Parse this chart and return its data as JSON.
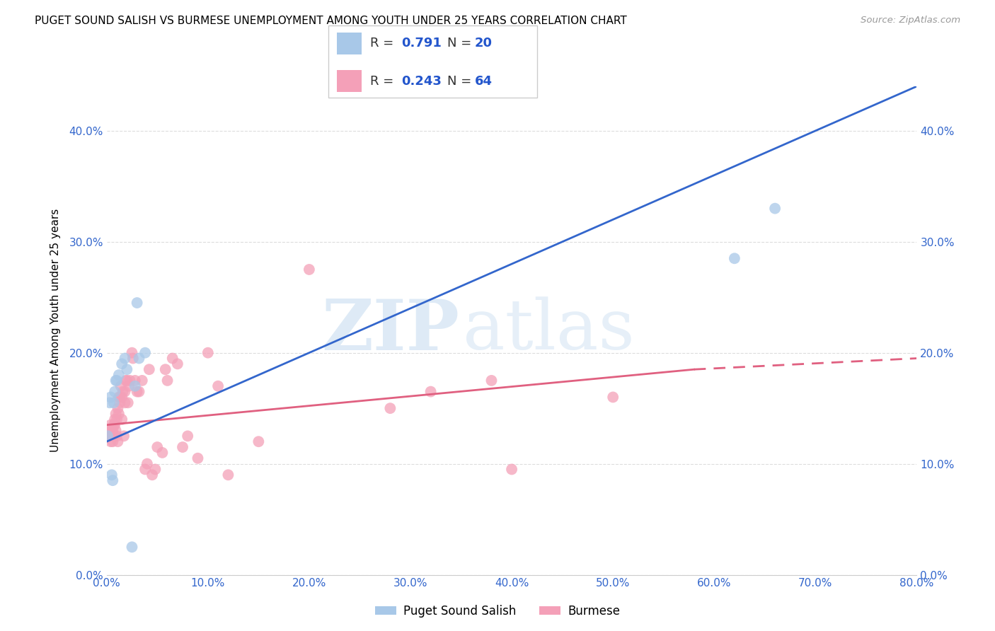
{
  "title": "PUGET SOUND SALISH VS BURMESE UNEMPLOYMENT AMONG YOUTH UNDER 25 YEARS CORRELATION CHART",
  "source": "Source: ZipAtlas.com",
  "ylabel": "Unemployment Among Youth under 25 years",
  "xlim": [
    0.0,
    0.8
  ],
  "ylim": [
    0.0,
    0.44
  ],
  "xticks": [
    0.0,
    0.1,
    0.2,
    0.3,
    0.4,
    0.5,
    0.6,
    0.7,
    0.8
  ],
  "yticks": [
    0.0,
    0.1,
    0.2,
    0.3,
    0.4
  ],
  "background_color": "#ffffff",
  "watermark_zip": "ZIP",
  "watermark_atlas": "atlas",
  "series": {
    "puget": {
      "color": "#a8c8e8",
      "line_color": "#3366cc",
      "R": 0.791,
      "N": 20,
      "label": "Puget Sound Salish",
      "x": [
        0.001,
        0.003,
        0.004,
        0.005,
        0.006,
        0.007,
        0.008,
        0.009,
        0.01,
        0.012,
        0.015,
        0.018,
        0.02,
        0.025,
        0.028,
        0.032,
        0.038,
        0.62,
        0.66,
        0.03
      ],
      "y": [
        0.125,
        0.155,
        0.16,
        0.09,
        0.085,
        0.155,
        0.165,
        0.175,
        0.175,
        0.18,
        0.19,
        0.195,
        0.185,
        0.025,
        0.17,
        0.195,
        0.2,
        0.285,
        0.33,
        0.245
      ]
    },
    "burmese": {
      "color": "#f4a0b8",
      "line_color": "#e06080",
      "R": 0.243,
      "N": 64,
      "label": "Burmese",
      "x": [
        0.002,
        0.003,
        0.004,
        0.004,
        0.005,
        0.005,
        0.006,
        0.006,
        0.007,
        0.007,
        0.008,
        0.008,
        0.009,
        0.009,
        0.01,
        0.01,
        0.011,
        0.011,
        0.012,
        0.012,
        0.013,
        0.013,
        0.014,
        0.015,
        0.015,
        0.016,
        0.017,
        0.018,
        0.018,
        0.019,
        0.02,
        0.021,
        0.022,
        0.023,
        0.025,
        0.026,
        0.028,
        0.03,
        0.032,
        0.035,
        0.038,
        0.04,
        0.042,
        0.045,
        0.048,
        0.05,
        0.055,
        0.058,
        0.06,
        0.065,
        0.07,
        0.075,
        0.08,
        0.09,
        0.1,
        0.11,
        0.12,
        0.15,
        0.2,
        0.28,
        0.32,
        0.38,
        0.4,
        0.5
      ],
      "y": [
        0.13,
        0.125,
        0.12,
        0.135,
        0.13,
        0.125,
        0.12,
        0.13,
        0.135,
        0.125,
        0.14,
        0.135,
        0.13,
        0.145,
        0.125,
        0.14,
        0.12,
        0.15,
        0.145,
        0.16,
        0.155,
        0.16,
        0.17,
        0.14,
        0.16,
        0.165,
        0.125,
        0.165,
        0.155,
        0.175,
        0.175,
        0.155,
        0.17,
        0.175,
        0.2,
        0.195,
        0.175,
        0.165,
        0.165,
        0.175,
        0.095,
        0.1,
        0.185,
        0.09,
        0.095,
        0.115,
        0.11,
        0.185,
        0.175,
        0.195,
        0.19,
        0.115,
        0.125,
        0.105,
        0.2,
        0.17,
        0.09,
        0.12,
        0.275,
        0.15,
        0.165,
        0.175,
        0.095,
        0.16
      ]
    }
  },
  "puget_line": {
    "x0": 0.0,
    "y0": 0.12,
    "x1": 0.8,
    "y1": 0.44
  },
  "burmese_line_solid": {
    "x0": 0.0,
    "y0": 0.135,
    "x1": 0.58,
    "y1": 0.185
  },
  "burmese_line_dash": {
    "x0": 0.58,
    "y0": 0.185,
    "x1": 0.8,
    "y1": 0.195
  }
}
